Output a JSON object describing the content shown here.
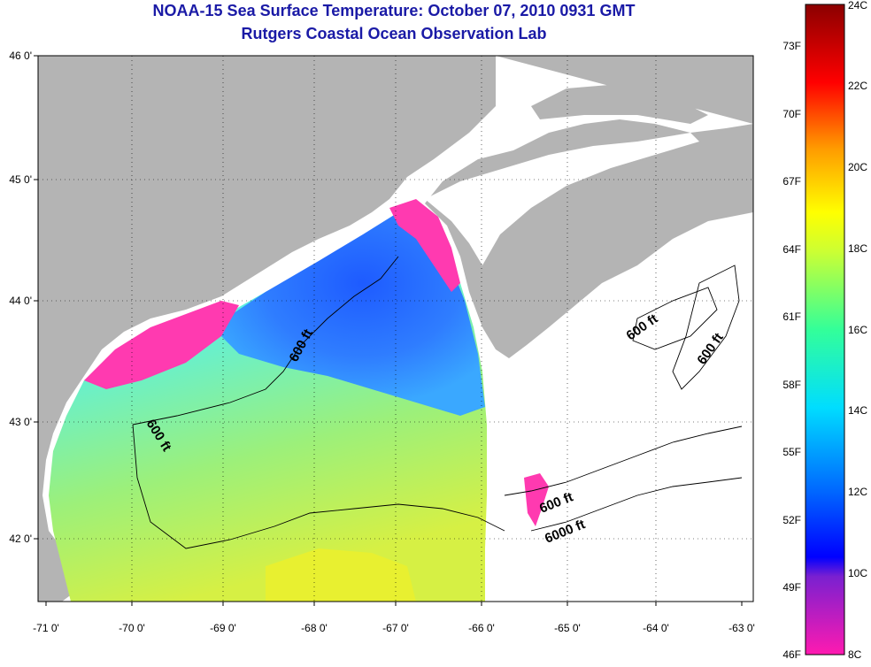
{
  "title": "NOAA-15 Sea Surface Temperature:  October 07, 2010 0931 GMT",
  "subtitle": "Rutgers Coastal Ocean Observation Lab",
  "lon_ticks": [
    "-71 0'",
    "-70 0'",
    "-69 0'",
    "-68 0'",
    "-67 0'",
    "-66 0'",
    "-65 0'",
    "-64 0'",
    "-63 0'"
  ],
  "lat_ticks": [
    "46 0'",
    "45 0'",
    "44 0'",
    "43 0'",
    "42 0'"
  ],
  "contour_labels": [
    "600 ft",
    "600 ft",
    "600 ft",
    "600 ft",
    "600 ft",
    "6000 ft"
  ],
  "colorbar": {
    "fahrenheit": [
      "73F",
      "70F",
      "67F",
      "64F",
      "61F",
      "58F",
      "55F",
      "52F",
      "49F",
      "46F"
    ],
    "celsius": [
      "24C",
      "22C",
      "20C",
      "18C",
      "16C",
      "14C",
      "12C",
      "10C",
      "8C"
    ]
  },
  "colors": {
    "title": "#1a1aa6",
    "land": "#b4b4b4",
    "no_data": "#ffffff",
    "cold": "#ff33aa",
    "warm": "#8b0000"
  }
}
